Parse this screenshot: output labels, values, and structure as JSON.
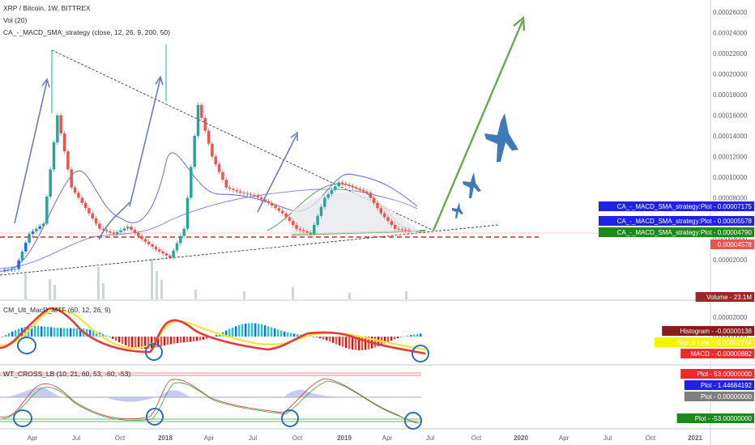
{
  "legend": {
    "symbol": "XRP / Bitcoin, 1W, BITTREX",
    "volume": "Vol (20)",
    "strategy": "CA_-_MACD_SMA_strategy (close, 12, 26, 9, 200, 50)",
    "macd": "CM_Ult_MacD_MTF (60, 12, 26, 9)",
    "wt": "WT_CROSS_LB (10, 21, 60, 53, -60, -53)"
  },
  "colors": {
    "up": "#26a69a",
    "down": "#ef5350",
    "blue_candle": "#2962ff",
    "arrow_green": "#6aa84f",
    "arrow_blue": "#6b7fb3",
    "jet": "#3d7ab8"
  },
  "chart_data": [
    {
      "type": "line",
      "title": "XRP / Bitcoin, 1W, BITTREX",
      "x_ticks": [
        "Apr",
        "Jul",
        "Oct",
        "2018",
        "Apr",
        "Jul",
        "Oct",
        "2019",
        "Apr",
        "Jul",
        "Oct",
        "2020",
        "Apr",
        "Jul",
        "Oct",
        "2021"
      ],
      "y_ticks": [
        "0.00026000",
        "0.00024000",
        "0.00022000",
        "0.00020000",
        "0.00018000",
        "0.00016000",
        "0.00014000",
        "0.00012000",
        "0.00010000",
        "0.00008000",
        "0.00006000",
        "0.00004000",
        "0.00002000"
      ],
      "ylim": [
        0,
        0.00027
      ],
      "series": [
        {
          "values": [
            1e-05,
            1.1e-05,
            4.5e-05,
            5.5e-05,
            0.00016,
            9e-05,
            7e-05,
            5e-05,
            4.5e-05,
            5.2e-05,
            4e-05,
            3e-05,
            2.2e-05,
            5e-05,
            0.00017,
            0.00012,
            9e-05,
            8.5e-05,
            8.2e-05,
            7.5e-05,
            6.5e-05,
            5e-05,
            4.5e-05,
            8e-05,
            9.5e-05,
            9e-05,
            8.5e-05,
            6.5e-05,
            5e-05,
            4.8e-05
          ]
        }
      ],
      "tags": [
        {
          "label": "CA_-_MACD_SMA_strategy:Plot",
          "value": "0.00007175",
          "color": "#1e22e6"
        },
        {
          "label": "CA_-_MACD_SMA_strategy:Plot",
          "value": "0.00005578",
          "color": "#1e22e6"
        },
        {
          "label": "CA_-_MACD_SMA_strategy:Plot",
          "value": "0.00004790",
          "color": "#1b8a1b"
        },
        {
          "label": "",
          "value": "0.00004578",
          "color": "#ef5350"
        },
        {
          "label": "Volume",
          "value": "23.1M",
          "color": "#9c2727"
        }
      ]
    },
    {
      "type": "bar",
      "title": "CM_Ult_MacD_MTF (60, 12, 26, 9)",
      "y_ticks": [
        "0.00002000",
        "0.00000000",
        "-0.00002000"
      ],
      "ylim": [
        -3e-05,
        3e-05
      ],
      "tags": [
        {
          "label": "Histogram",
          "value": "-0.00000138",
          "color": "#8b1a1a"
        },
        {
          "label": "Signal Line",
          "value": "-0.00000744",
          "color": "#f5f500"
        },
        {
          "label": "MACD",
          "value": "-0.00000882",
          "color": "#ef2a2a"
        }
      ]
    },
    {
      "type": "line",
      "title": "WT_CROSS_LB (10, 21, 60, 53, -60, -53)",
      "tags": [
        {
          "label": "Plot",
          "value": "53.00000000",
          "color": "#ef2a2a"
        },
        {
          "label": "Plot",
          "value": "1.44684192",
          "color": "#1e22e6"
        },
        {
          "label": "Plot",
          "value": "0.00000000",
          "color": "#7f7f7f"
        },
        {
          "label": "Plot",
          "value": "-53.00000000",
          "color": "#1b8a1b"
        }
      ]
    }
  ]
}
